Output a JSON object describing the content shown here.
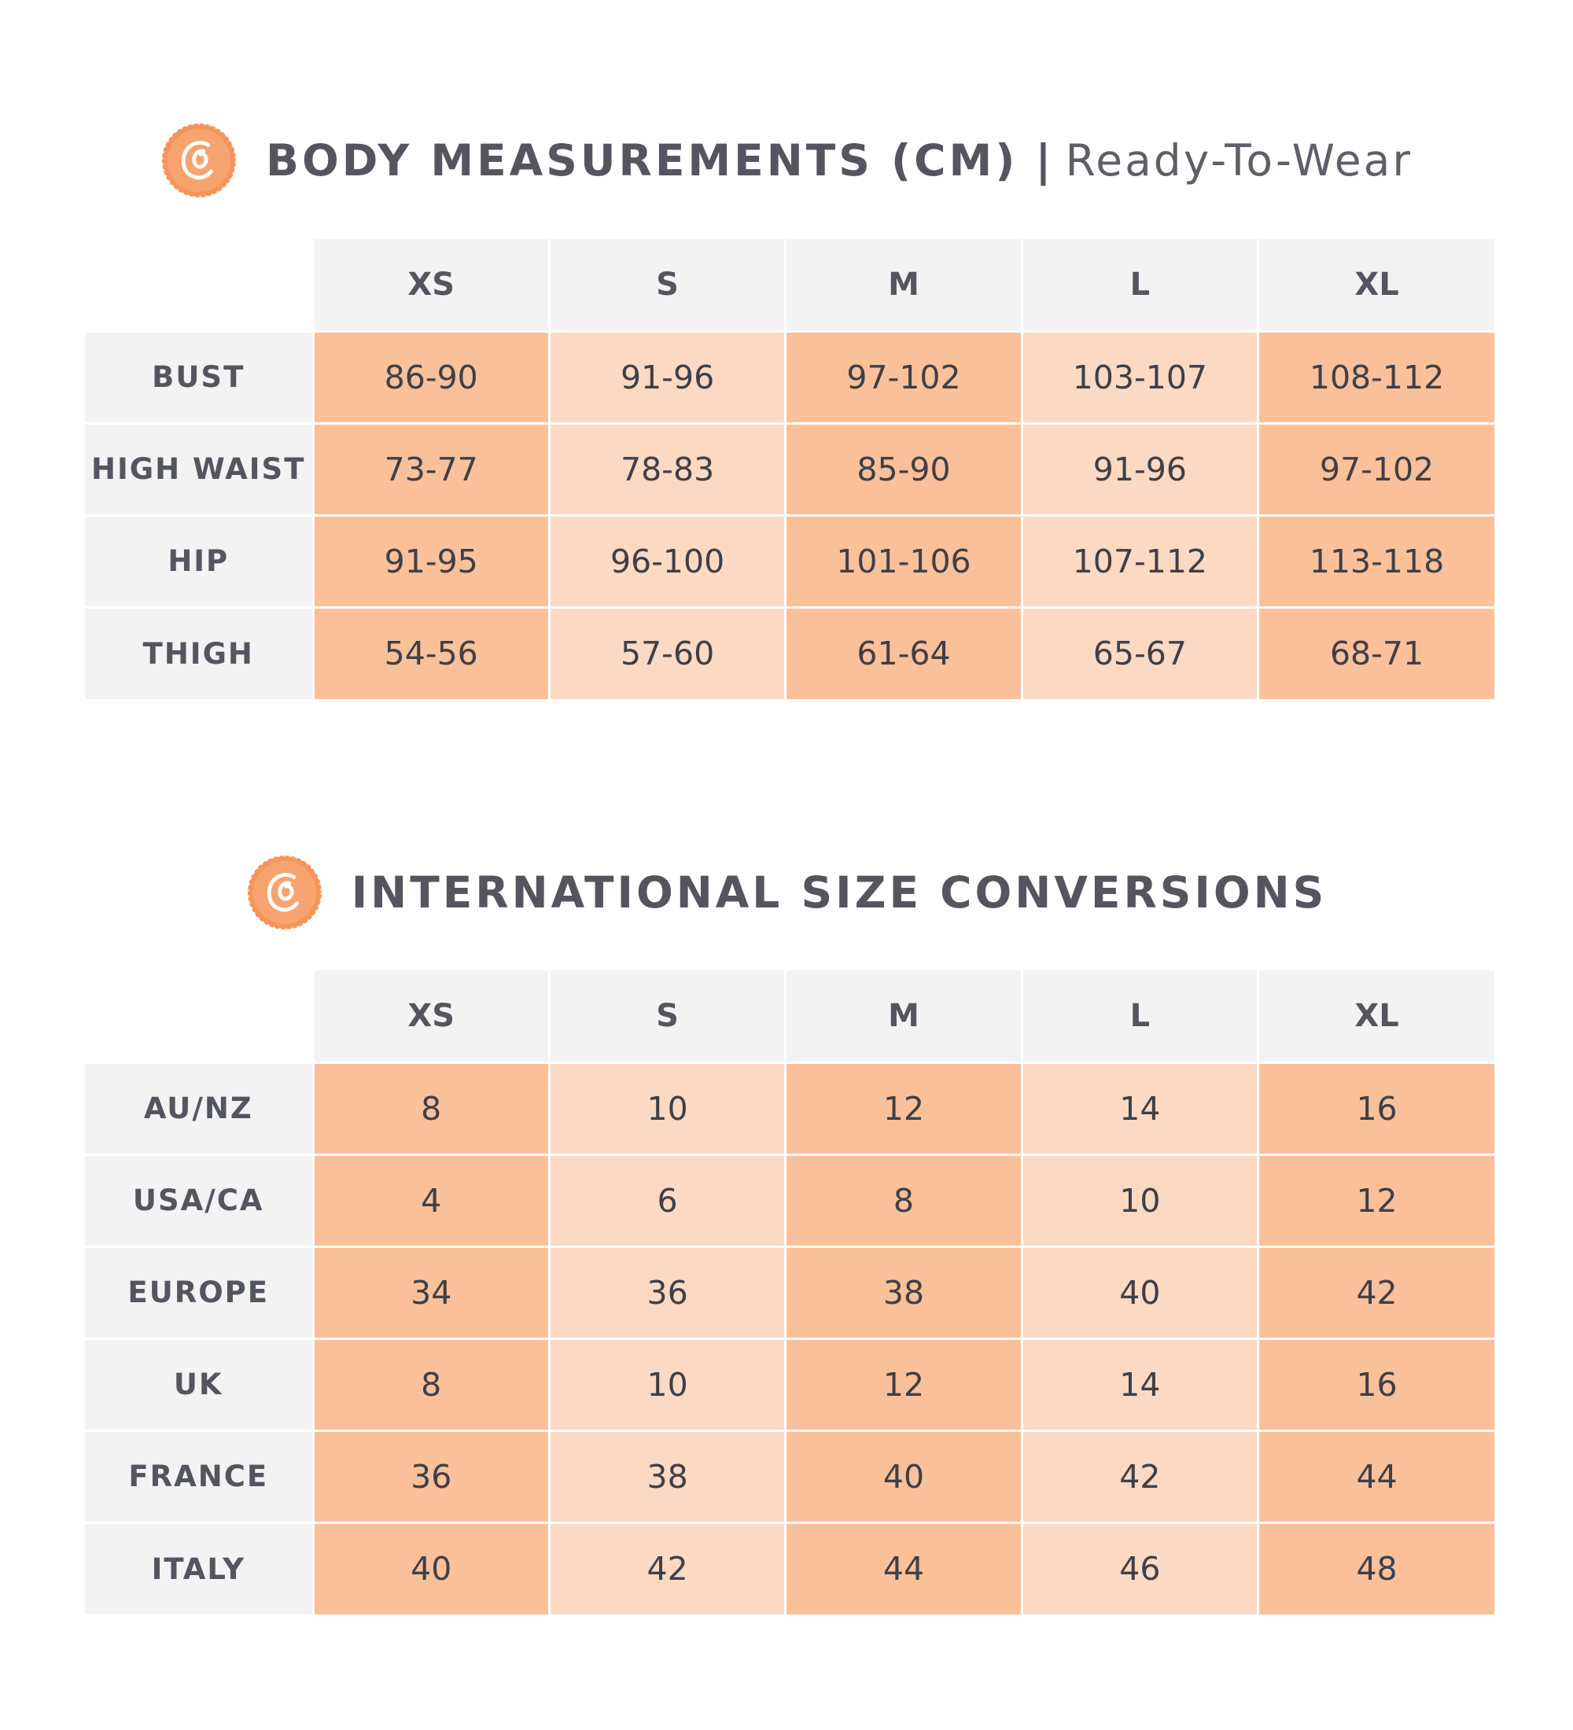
{
  "colors": {
    "text": "#55555f",
    "header_bg": "#f3f3f3",
    "cell_dark": "#fac09a",
    "cell_light": "#fbd9c3",
    "logo_orange": "#f5955a"
  },
  "body_measurements": {
    "title": "BODY MEASUREMENTS (CM)",
    "separator": "|",
    "subtitle": "Ready-To-Wear",
    "logo_icon": "orange-seal-c-icon",
    "sizes": [
      "XS",
      "S",
      "M",
      "L",
      "XL"
    ],
    "rows": [
      {
        "label": "BUST",
        "values": [
          "86-90",
          "91-96",
          "97-102",
          "103-107",
          "108-112"
        ]
      },
      {
        "label": "HIGH WAIST",
        "values": [
          "73-77",
          "78-83",
          "85-90",
          "91-96",
          "97-102"
        ]
      },
      {
        "label": "HIP",
        "values": [
          "91-95",
          "96-100",
          "101-106",
          "107-112",
          "113-118"
        ]
      },
      {
        "label": "THIGH",
        "values": [
          "54-56",
          "57-60",
          "61-64",
          "65-67",
          "68-71"
        ]
      }
    ]
  },
  "size_conversions": {
    "title": "INTERNATIONAL SIZE CONVERSIONS",
    "logo_icon": "orange-seal-c-icon",
    "sizes": [
      "XS",
      "S",
      "M",
      "L",
      "XL"
    ],
    "rows": [
      {
        "label": "AU/NZ",
        "values": [
          "8",
          "10",
          "12",
          "14",
          "16"
        ]
      },
      {
        "label": "USA/CA",
        "values": [
          "4",
          "6",
          "8",
          "10",
          "12"
        ]
      },
      {
        "label": "EUROPE",
        "values": [
          "34",
          "36",
          "38",
          "40",
          "42"
        ]
      },
      {
        "label": "UK",
        "values": [
          "8",
          "10",
          "12",
          "14",
          "16"
        ]
      },
      {
        "label": "FRANCE",
        "values": [
          "36",
          "38",
          "40",
          "42",
          "44"
        ]
      },
      {
        "label": "ITALY",
        "values": [
          "40",
          "42",
          "44",
          "46",
          "48"
        ]
      }
    ]
  }
}
